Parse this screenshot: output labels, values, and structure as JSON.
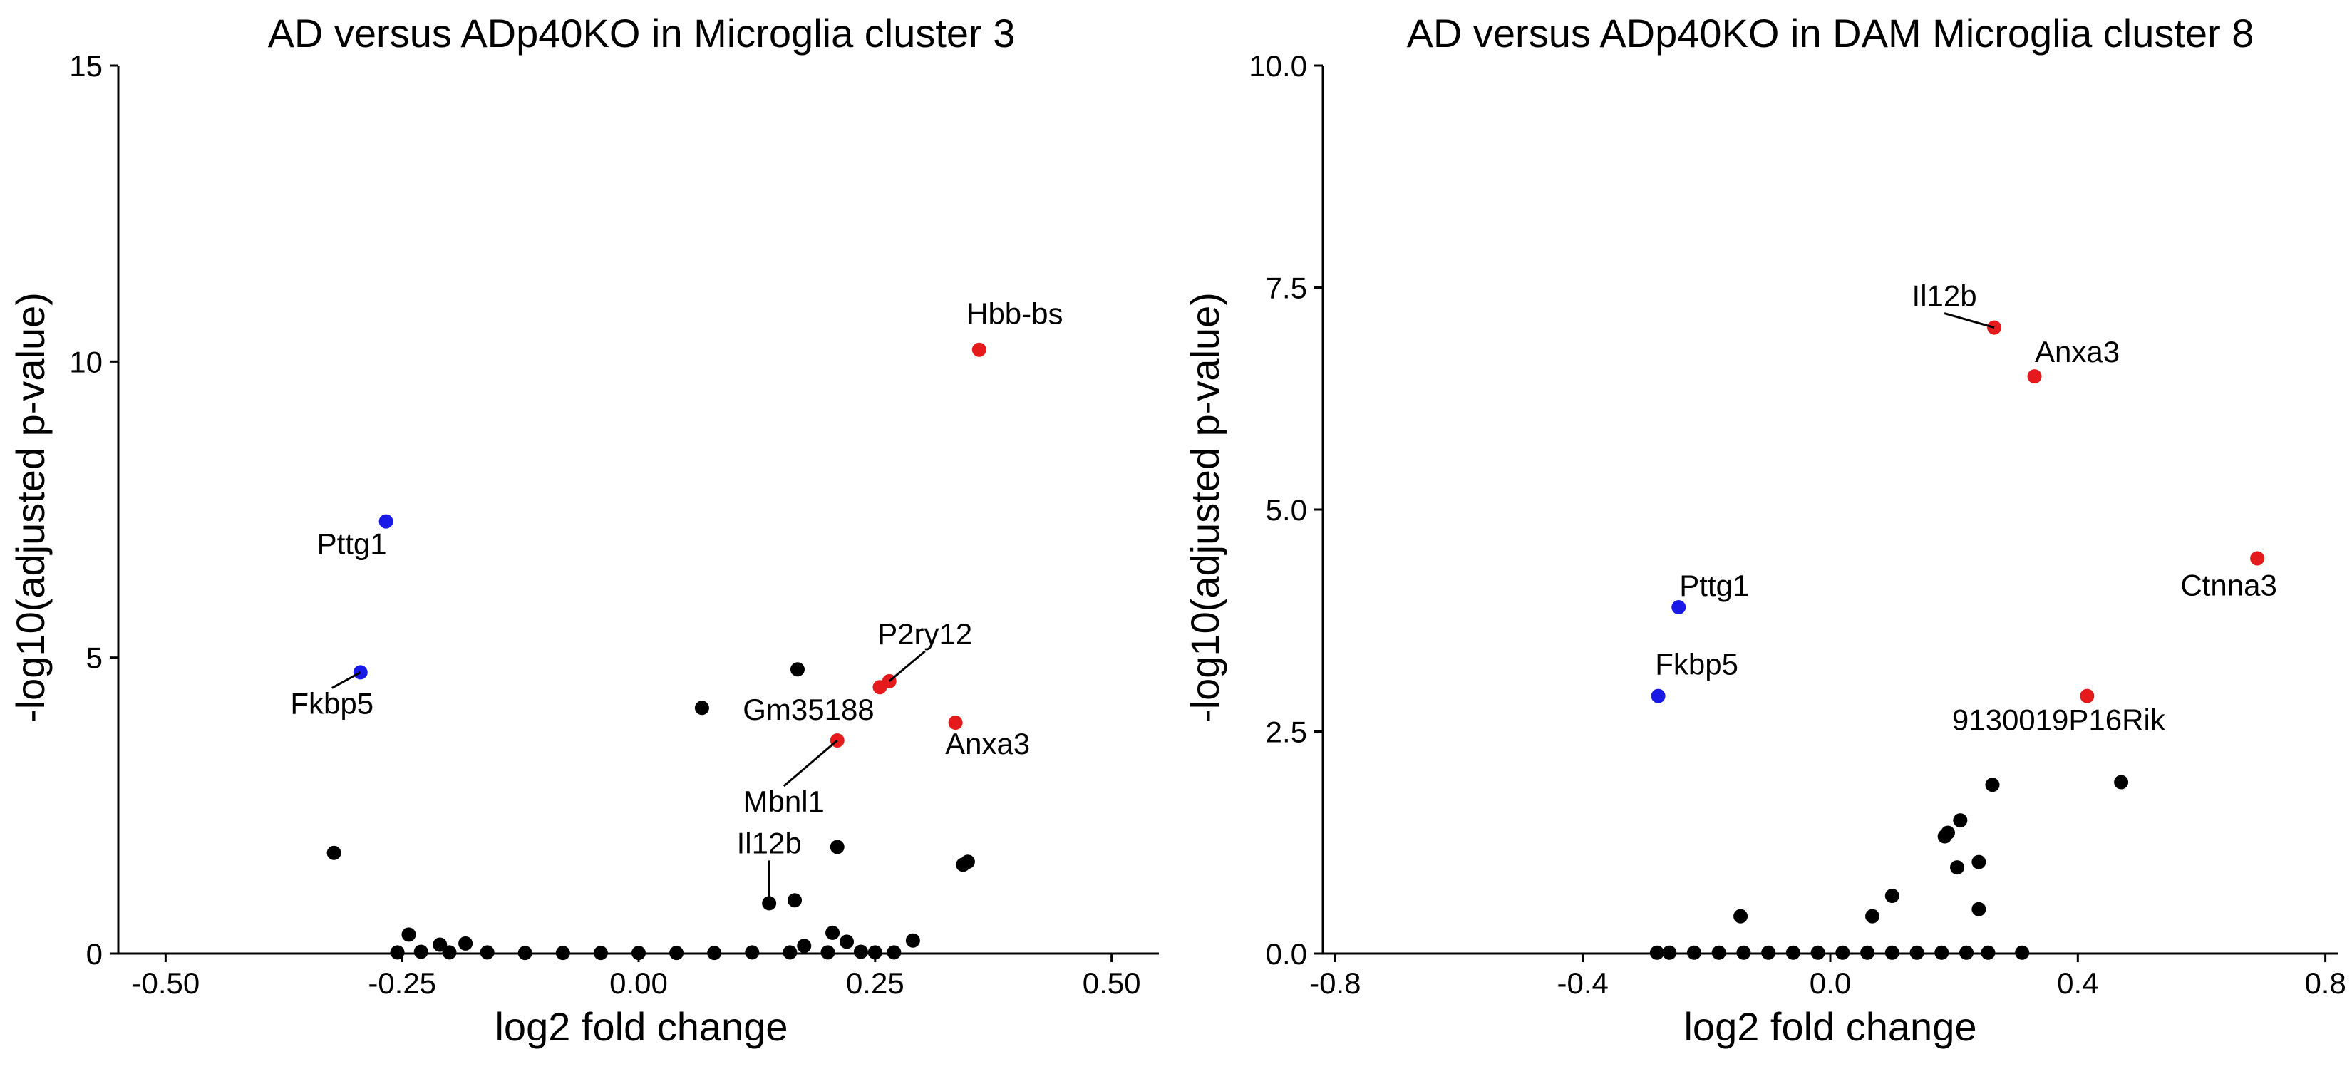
{
  "chart_data": [
    {
      "type": "scatter",
      "title": "AD versus ADp40KO in Microglia cluster 3",
      "xlabel": "log2 fold change",
      "ylabel": "-log10(adjusted p-value)",
      "xlim": [
        -0.55,
        0.55
      ],
      "ylim": [
        0,
        15
      ],
      "xticks": [
        -0.5,
        -0.25,
        0.0,
        0.25,
        0.5
      ],
      "xtick_labels": [
        "-0.50",
        "-0.25",
        "0.00",
        "0.25",
        "0.50"
      ],
      "yticks": [
        0,
        5,
        10,
        15
      ],
      "ytick_labels": [
        "0",
        "5",
        "10",
        "15"
      ],
      "grid": false,
      "colors": {
        "up": "#e41a1c",
        "down": "#1a1ae6",
        "ns": "#000000"
      },
      "points": [
        {
          "x": 0.36,
          "y": 10.2,
          "group": "up",
          "label": "Hbb-bs"
        },
        {
          "x": -0.267,
          "y": 7.3,
          "group": "down",
          "label": "Pttg1"
        },
        {
          "x": -0.294,
          "y": 4.75,
          "group": "down",
          "label": "Fkbp5"
        },
        {
          "x": 0.265,
          "y": 4.6,
          "group": "up",
          "label": "P2ry12"
        },
        {
          "x": 0.255,
          "y": 4.5,
          "group": "up",
          "label": "Gm35188"
        },
        {
          "x": 0.335,
          "y": 3.9,
          "group": "up",
          "label": "Anxa3"
        },
        {
          "x": 0.21,
          "y": 3.6,
          "group": "up",
          "label": "Mbnl1"
        },
        {
          "x": 0.138,
          "y": 0.85,
          "group": "ns",
          "label": "Il12b"
        },
        {
          "x": 0.168,
          "y": 4.8,
          "group": "ns"
        },
        {
          "x": 0.067,
          "y": 4.15,
          "group": "ns"
        },
        {
          "x": -0.322,
          "y": 1.7,
          "group": "ns"
        },
        {
          "x": 0.21,
          "y": 1.8,
          "group": "ns"
        },
        {
          "x": 0.343,
          "y": 1.5,
          "group": "ns"
        },
        {
          "x": 0.348,
          "y": 1.55,
          "group": "ns"
        },
        {
          "x": 0.165,
          "y": 0.9,
          "group": "ns"
        },
        {
          "x": -0.243,
          "y": 0.32,
          "group": "ns"
        },
        {
          "x": -0.21,
          "y": 0.15,
          "group": "ns"
        },
        {
          "x": -0.183,
          "y": 0.17,
          "group": "ns"
        },
        {
          "x": 0.205,
          "y": 0.35,
          "group": "ns"
        },
        {
          "x": 0.22,
          "y": 0.2,
          "group": "ns"
        },
        {
          "x": 0.29,
          "y": 0.22,
          "group": "ns"
        },
        {
          "x": 0.175,
          "y": 0.13,
          "group": "ns"
        },
        {
          "x": -0.255,
          "y": 0.02,
          "group": "ns"
        },
        {
          "x": -0.23,
          "y": 0.03,
          "group": "ns"
        },
        {
          "x": -0.2,
          "y": 0.02,
          "group": "ns"
        },
        {
          "x": -0.16,
          "y": 0.02,
          "group": "ns"
        },
        {
          "x": -0.12,
          "y": 0.01,
          "group": "ns"
        },
        {
          "x": -0.08,
          "y": 0.01,
          "group": "ns"
        },
        {
          "x": -0.04,
          "y": 0.01,
          "group": "ns"
        },
        {
          "x": 0.0,
          "y": 0.01,
          "group": "ns"
        },
        {
          "x": 0.04,
          "y": 0.01,
          "group": "ns"
        },
        {
          "x": 0.08,
          "y": 0.01,
          "group": "ns"
        },
        {
          "x": 0.12,
          "y": 0.02,
          "group": "ns"
        },
        {
          "x": 0.16,
          "y": 0.02,
          "group": "ns"
        },
        {
          "x": 0.2,
          "y": 0.02,
          "group": "ns"
        },
        {
          "x": 0.235,
          "y": 0.03,
          "group": "ns"
        },
        {
          "x": 0.25,
          "y": 0.02,
          "group": "ns"
        },
        {
          "x": 0.27,
          "y": 0.02,
          "group": "ns"
        }
      ]
    },
    {
      "type": "scatter",
      "title": "AD versus ADp40KO in DAM Microglia cluster 8",
      "xlabel": "log2 fold change",
      "ylabel": "-log10(adjusted p-value)",
      "xlim": [
        -0.82,
        0.82
      ],
      "ylim": [
        0,
        10
      ],
      "xticks": [
        -0.8,
        -0.4,
        0.0,
        0.4,
        0.8
      ],
      "xtick_labels": [
        "-0.8",
        "-0.4",
        "0.0",
        "0.4",
        "0.8"
      ],
      "yticks": [
        0,
        2.5,
        5,
        7.5,
        10
      ],
      "ytick_labels": [
        "0.0",
        "2.5",
        "5.0",
        "7.5",
        "10.0"
      ],
      "grid": false,
      "colors": {
        "up": "#e41a1c",
        "down": "#1a1ae6",
        "ns": "#000000"
      },
      "points": [
        {
          "x": 0.265,
          "y": 7.05,
          "group": "up",
          "label": "Il12b"
        },
        {
          "x": 0.33,
          "y": 6.5,
          "group": "up",
          "label": "Anxa3"
        },
        {
          "x": 0.69,
          "y": 4.45,
          "group": "up",
          "label": "Ctnna3"
        },
        {
          "x": 0.415,
          "y": 2.9,
          "group": "up",
          "label": "9130019P16Rik"
        },
        {
          "x": -0.245,
          "y": 3.9,
          "group": "down",
          "label": "Pttg1"
        },
        {
          "x": -0.278,
          "y": 2.9,
          "group": "down",
          "label": "Fkbp5"
        },
        {
          "x": 0.262,
          "y": 1.9,
          "group": "ns"
        },
        {
          "x": 0.47,
          "y": 1.93,
          "group": "ns"
        },
        {
          "x": 0.21,
          "y": 1.5,
          "group": "ns"
        },
        {
          "x": 0.185,
          "y": 1.32,
          "group": "ns"
        },
        {
          "x": 0.19,
          "y": 1.36,
          "group": "ns"
        },
        {
          "x": 0.205,
          "y": 0.97,
          "group": "ns"
        },
        {
          "x": 0.24,
          "y": 1.03,
          "group": "ns"
        },
        {
          "x": 0.1,
          "y": 0.65,
          "group": "ns"
        },
        {
          "x": 0.068,
          "y": 0.42,
          "group": "ns"
        },
        {
          "x": 0.24,
          "y": 0.5,
          "group": "ns"
        },
        {
          "x": -0.145,
          "y": 0.42,
          "group": "ns"
        },
        {
          "x": -0.28,
          "y": 0.01,
          "group": "ns"
        },
        {
          "x": -0.26,
          "y": 0.01,
          "group": "ns"
        },
        {
          "x": -0.22,
          "y": 0.01,
          "group": "ns"
        },
        {
          "x": -0.18,
          "y": 0.01,
          "group": "ns"
        },
        {
          "x": -0.14,
          "y": 0.01,
          "group": "ns"
        },
        {
          "x": -0.1,
          "y": 0.01,
          "group": "ns"
        },
        {
          "x": -0.06,
          "y": 0.01,
          "group": "ns"
        },
        {
          "x": -0.02,
          "y": 0.01,
          "group": "ns"
        },
        {
          "x": 0.02,
          "y": 0.01,
          "group": "ns"
        },
        {
          "x": 0.06,
          "y": 0.01,
          "group": "ns"
        },
        {
          "x": 0.1,
          "y": 0.01,
          "group": "ns"
        },
        {
          "x": 0.14,
          "y": 0.01,
          "group": "ns"
        },
        {
          "x": 0.18,
          "y": 0.01,
          "group": "ns"
        },
        {
          "x": 0.22,
          "y": 0.01,
          "group": "ns"
        },
        {
          "x": 0.255,
          "y": 0.01,
          "group": "ns"
        },
        {
          "x": 0.31,
          "y": 0.01,
          "group": "ns"
        }
      ]
    }
  ]
}
